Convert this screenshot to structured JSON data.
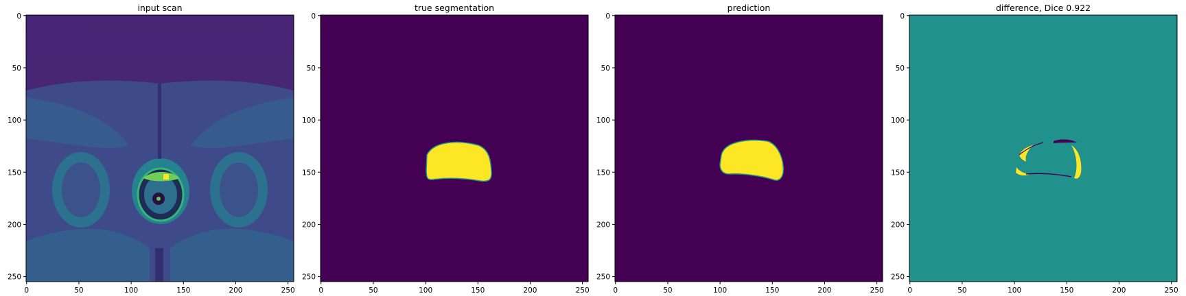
{
  "colors": {
    "viridis_low": "#440154",
    "viridis_mid": "#21918c",
    "viridis_high": "#fde725"
  },
  "panels": [
    {
      "title": "input scan",
      "kind": "mri-axial-pelvis",
      "x_ticks": [
        "0",
        "50",
        "100",
        "150",
        "200",
        "250"
      ],
      "y_ticks": [
        "0",
        "50",
        "100",
        "150",
        "200",
        "250"
      ]
    },
    {
      "title": "true segmentation",
      "kind": "binary-mask",
      "x_ticks": [
        "0",
        "50",
        "100",
        "150",
        "200",
        "250"
      ],
      "y_ticks": [
        "0",
        "50",
        "100",
        "150",
        "200",
        "250"
      ]
    },
    {
      "title": "prediction",
      "kind": "binary-mask",
      "x_ticks": [
        "0",
        "50",
        "100",
        "150",
        "200",
        "250"
      ],
      "y_ticks": [
        "0",
        "50",
        "100",
        "150",
        "200",
        "250"
      ]
    },
    {
      "title": "difference, Dice 0.922",
      "kind": "difference-map",
      "x_ticks": [
        "0",
        "50",
        "100",
        "150",
        "200",
        "250"
      ],
      "y_ticks": [
        "0",
        "50",
        "100",
        "150",
        "200",
        "250"
      ]
    }
  ]
}
